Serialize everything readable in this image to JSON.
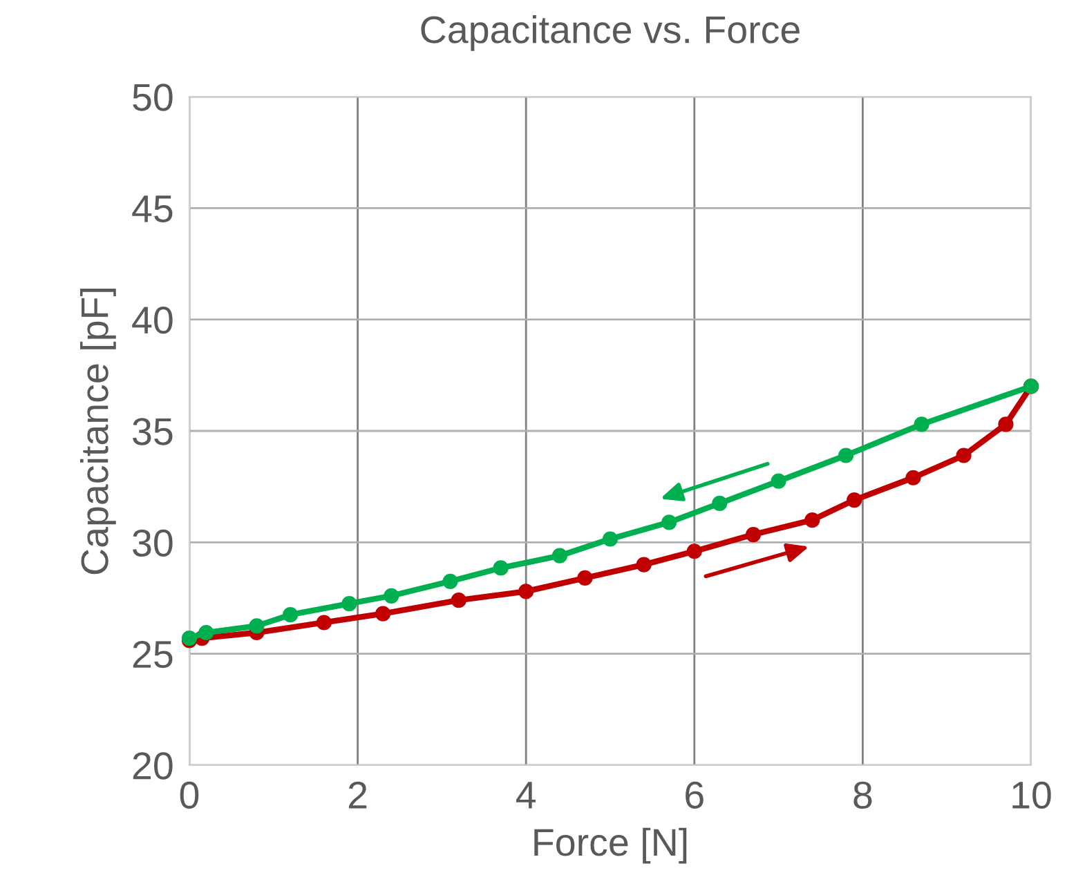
{
  "chart_data": {
    "type": "line",
    "title": "Capacitance vs. Force",
    "xlabel": "Force [N]",
    "ylabel": "Capacitance [pF]",
    "xlim": [
      0,
      10
    ],
    "xticks": [
      0,
      2,
      4,
      6,
      8,
      10
    ],
    "ylim": [
      20,
      50
    ],
    "yticks": [
      20,
      25,
      30,
      35,
      40,
      45,
      50
    ],
    "grid": true,
    "marker": "circle",
    "line_style": "solid",
    "series": [
      {
        "color": "#c00000",
        "x": [
          0,
          0.15,
          0.8,
          1.6,
          2.3,
          3.2,
          4.0,
          4.7,
          5.4,
          6.0,
          6.7,
          7.4,
          7.9,
          8.6,
          9.2,
          9.7,
          10
        ],
        "values": [
          25.6,
          25.7,
          25.95,
          26.4,
          26.8,
          27.4,
          27.8,
          28.4,
          29.0,
          29.6,
          30.35,
          31.0,
          31.9,
          32.9,
          33.9,
          35.3,
          37.0
        ]
      },
      {
        "color": "#00b050",
        "x": [
          0,
          0.2,
          0.8,
          1.2,
          1.9,
          2.4,
          3.1,
          3.7,
          4.4,
          5.0,
          5.7,
          6.3,
          7.0,
          7.8,
          8.7,
          10
        ],
        "values": [
          25.7,
          25.95,
          26.25,
          26.75,
          27.25,
          27.6,
          28.25,
          28.85,
          29.4,
          30.15,
          30.9,
          31.75,
          32.75,
          33.9,
          35.3,
          37.0
        ]
      }
    ]
  }
}
